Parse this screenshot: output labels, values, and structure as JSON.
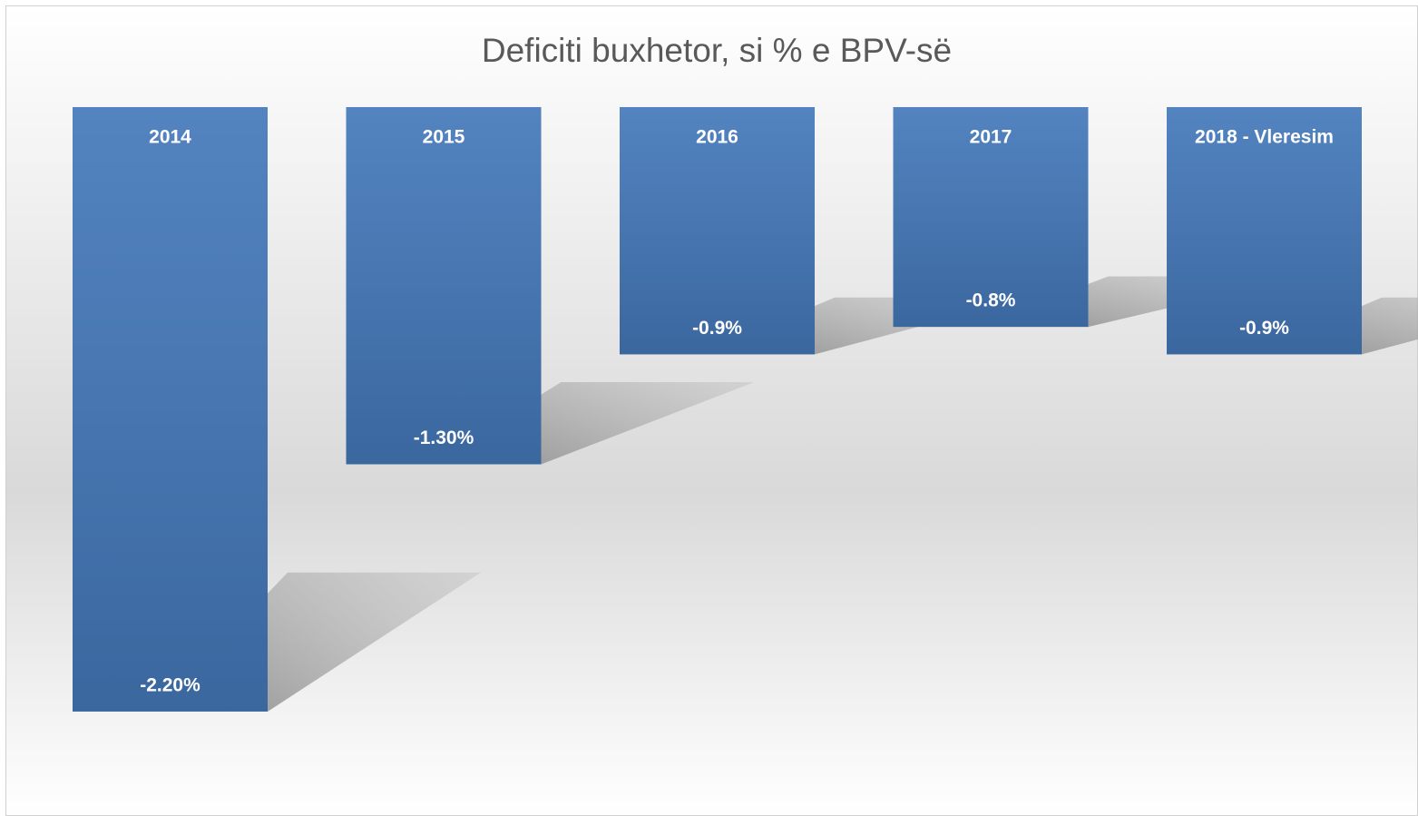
{
  "chart_data": {
    "type": "bar",
    "title": "Deficiti buxhetor, si % e BPV-së",
    "categories": [
      "2014",
      "2015",
      "2016",
      "2017",
      "2018 - Vleresim"
    ],
    "values": [
      -2.2,
      -1.3,
      -0.9,
      -0.8,
      -0.9
    ],
    "value_labels": [
      "-2.20%",
      "-1.30%",
      "-0.9%",
      "-0.8%",
      "-0.9%"
    ],
    "color": "#4a7bb7"
  }
}
